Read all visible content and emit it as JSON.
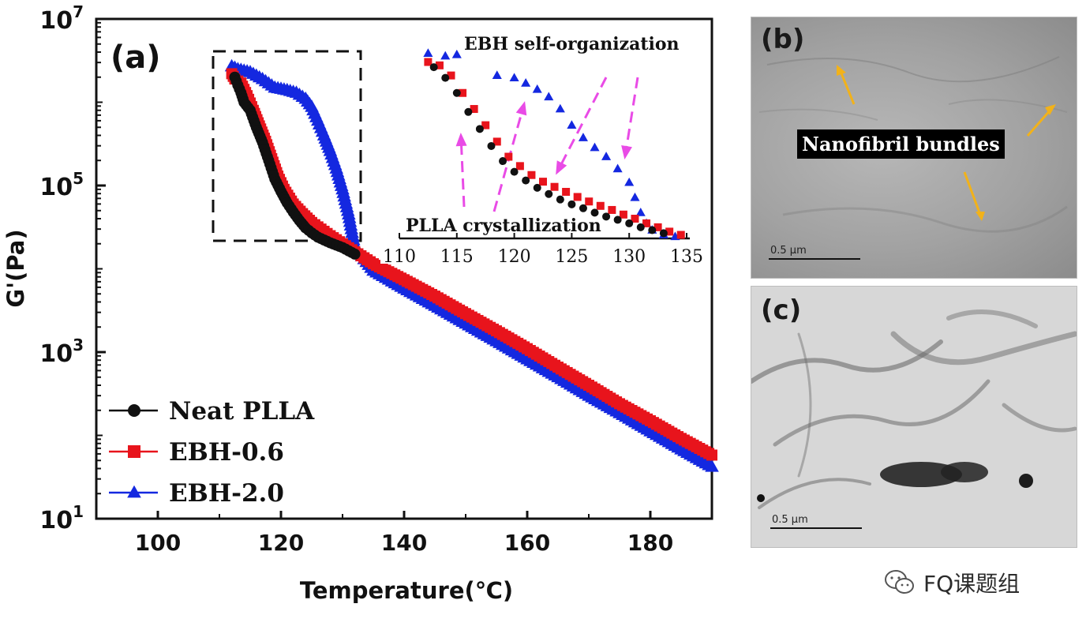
{
  "chart_data": {
    "type": "scatter",
    "panel_label": "(a)",
    "xlabel": "Temperature(℃)",
    "ylabel": "G'(Pa)",
    "xlim": [
      90,
      190
    ],
    "ylim": [
      10,
      10000000
    ],
    "yscale": "log",
    "x_ticks": [
      100,
      120,
      140,
      160,
      180
    ],
    "y_ticks": [
      {
        "value": 10,
        "base": "10",
        "exp": "1"
      },
      {
        "value": 1000,
        "base": "10",
        "exp": "3"
      },
      {
        "value": 100000,
        "base": "10",
        "exp": "5"
      },
      {
        "value": 10000000,
        "base": "10",
        "exp": "7"
      }
    ],
    "legend_position": "bottom-left",
    "series": [
      {
        "name": "Neat PLLA",
        "color": "#111111",
        "marker": "circle",
        "points": [
          [
            112.5,
            2000000
          ],
          [
            113,
            1600000
          ],
          [
            113.5,
            1300000
          ],
          [
            114,
            1000000
          ],
          [
            115,
            800000
          ],
          [
            116,
            500000
          ],
          [
            117,
            330000
          ],
          [
            118,
            200000
          ],
          [
            119,
            120000
          ],
          [
            120,
            85000
          ],
          [
            121,
            62000
          ],
          [
            122,
            48000
          ],
          [
            123,
            38000
          ],
          [
            124,
            31000
          ],
          [
            125,
            27000
          ],
          [
            126,
            24000
          ],
          [
            128,
            20500
          ],
          [
            130,
            18000
          ],
          [
            132,
            15000
          ]
        ]
      },
      {
        "name": "EBH-0.6",
        "color": "#e8141c",
        "marker": "square",
        "points": [
          [
            112,
            2200000
          ],
          [
            112.5,
            1900000
          ],
          [
            113.5,
            1700000
          ],
          [
            114.5,
            1200000
          ],
          [
            115.5,
            800000
          ],
          [
            116.5,
            520000
          ],
          [
            117.5,
            340000
          ],
          [
            118.5,
            210000
          ],
          [
            119.5,
            130000
          ],
          [
            120.5,
            90000
          ],
          [
            122,
            60000
          ],
          [
            123.5,
            46000
          ],
          [
            125,
            36000
          ],
          [
            126.5,
            30000
          ],
          [
            128,
            25000
          ],
          [
            130,
            20000
          ],
          [
            132,
            16000
          ],
          [
            135,
            11500
          ],
          [
            140,
            7400
          ],
          [
            145,
            4700
          ],
          [
            150,
            2900
          ],
          [
            155,
            1800
          ],
          [
            160,
            1100
          ],
          [
            165,
            660
          ],
          [
            170,
            400
          ],
          [
            175,
            240
          ],
          [
            180,
            150
          ],
          [
            185,
            92
          ],
          [
            190,
            58
          ]
        ]
      },
      {
        "name": "EBH-2.0",
        "color": "#1428e0",
        "marker": "triangle",
        "points": [
          [
            112,
            2700000
          ],
          [
            113,
            2500000
          ],
          [
            115,
            2300000
          ],
          [
            117,
            1900000
          ],
          [
            119,
            1500000
          ],
          [
            121,
            1400000
          ],
          [
            122.5,
            1300000
          ],
          [
            124,
            1100000
          ],
          [
            125,
            880000
          ],
          [
            126,
            600000
          ],
          [
            127,
            400000
          ],
          [
            128,
            260000
          ],
          [
            129,
            160000
          ],
          [
            130,
            90000
          ],
          [
            131,
            45000
          ],
          [
            132,
            18000
          ],
          [
            135,
            9500
          ],
          [
            140,
            5800
          ],
          [
            145,
            3600
          ],
          [
            150,
            2200
          ],
          [
            155,
            1350
          ],
          [
            160,
            820
          ],
          [
            165,
            500
          ],
          [
            170,
            300
          ],
          [
            175,
            185
          ],
          [
            180,
            112
          ],
          [
            185,
            68
          ],
          [
            190,
            42
          ]
        ]
      }
    ],
    "inset": {
      "xlim": [
        110,
        135
      ],
      "ylim": [
        20000,
        3000000
      ],
      "yscale": "log",
      "x_ticks": [
        110,
        115,
        120,
        125,
        130,
        135
      ],
      "annotations": [
        {
          "text": "EBH self-organization"
        },
        {
          "text": "PLLA crystallization"
        }
      ],
      "series": [
        {
          "name": "Neat PLLA",
          "color": "#111111",
          "marker": "circle",
          "points": [
            [
              113,
              2000000
            ],
            [
              114,
              1500000
            ],
            [
              115,
              1000000
            ],
            [
              116,
              600000
            ],
            [
              117,
              380000
            ],
            [
              118,
              240000
            ],
            [
              119,
              160000
            ],
            [
              120,
              120000
            ],
            [
              121,
              95000
            ],
            [
              122,
              78000
            ],
            [
              123,
              66000
            ],
            [
              124,
              57000
            ],
            [
              125,
              50000
            ],
            [
              126,
              45000
            ],
            [
              127,
              40000
            ],
            [
              128,
              36000
            ],
            [
              129,
              33000
            ],
            [
              130,
              30000
            ],
            [
              131,
              27000
            ],
            [
              132,
              25000
            ],
            [
              133,
              23000
            ]
          ]
        },
        {
          "name": "EBH-0.6",
          "color": "#e8141c",
          "marker": "square",
          "points": [
            [
              112.5,
              2300000
            ],
            [
              113.5,
              2100000
            ],
            [
              114.5,
              1600000
            ],
            [
              115.5,
              1000000
            ],
            [
              116.5,
              650000
            ],
            [
              117.5,
              420000
            ],
            [
              118.5,
              270000
            ],
            [
              119.5,
              180000
            ],
            [
              120.5,
              140000
            ],
            [
              121.5,
              110000
            ],
            [
              122.5,
              92000
            ],
            [
              123.5,
              80000
            ],
            [
              124.5,
              70000
            ],
            [
              125.5,
              61000
            ],
            [
              126.5,
              54000
            ],
            [
              127.5,
              48000
            ],
            [
              128.5,
              43000
            ],
            [
              129.5,
              38000
            ],
            [
              130.5,
              34000
            ],
            [
              131.5,
              30000
            ],
            [
              132.5,
              27000
            ],
            [
              133.5,
              24000
            ],
            [
              134.5,
              22000
            ]
          ]
        },
        {
          "name": "EBH-2.0",
          "color": "#1428e0",
          "marker": "triangle",
          "points": [
            [
              112.5,
              2900000
            ],
            [
              114,
              2700000
            ],
            [
              115,
              2800000
            ],
            [
              118.5,
              1600000
            ],
            [
              120,
              1500000
            ],
            [
              121,
              1300000
            ],
            [
              122,
              1100000
            ],
            [
              123,
              900000
            ],
            [
              124,
              650000
            ],
            [
              125,
              420000
            ],
            [
              126,
              300000
            ],
            [
              127,
              230000
            ],
            [
              128,
              180000
            ],
            [
              129,
              130000
            ],
            [
              130,
              90000
            ],
            [
              130.5,
              60000
            ],
            [
              131,
              40000
            ],
            [
              131.5,
              30000
            ],
            [
              132,
              25000
            ],
            [
              133,
              22000
            ],
            [
              134,
              21000
            ]
          ]
        }
      ]
    }
  },
  "panels": {
    "b": {
      "label": "(b)",
      "caption": "Nanofibril bundles",
      "scale": "0.5 μm"
    },
    "c": {
      "label": "(c)",
      "scale": "0.5 μm"
    }
  },
  "watermark": {
    "text": "FQ课题组",
    "icon": "wechat-icon"
  }
}
